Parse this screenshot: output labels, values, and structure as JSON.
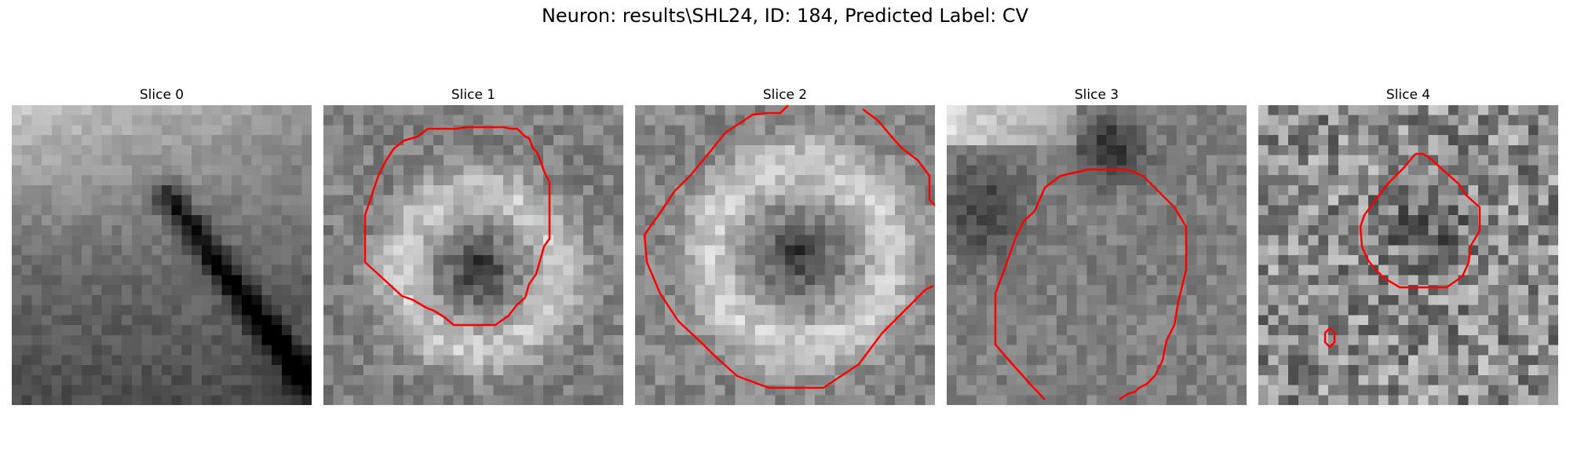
{
  "figure": {
    "title": "Neuron: results\\SHL24, ID: 184, Predicted Label: CV"
  },
  "overlay_color": "#ff0000",
  "image_colormap": "grayscale",
  "slices": [
    {
      "label": "Slice 0"
    },
    {
      "label": "Slice 1"
    },
    {
      "label": "Slice 2"
    },
    {
      "label": "Slice 3"
    },
    {
      "label": "Slice 4"
    }
  ]
}
